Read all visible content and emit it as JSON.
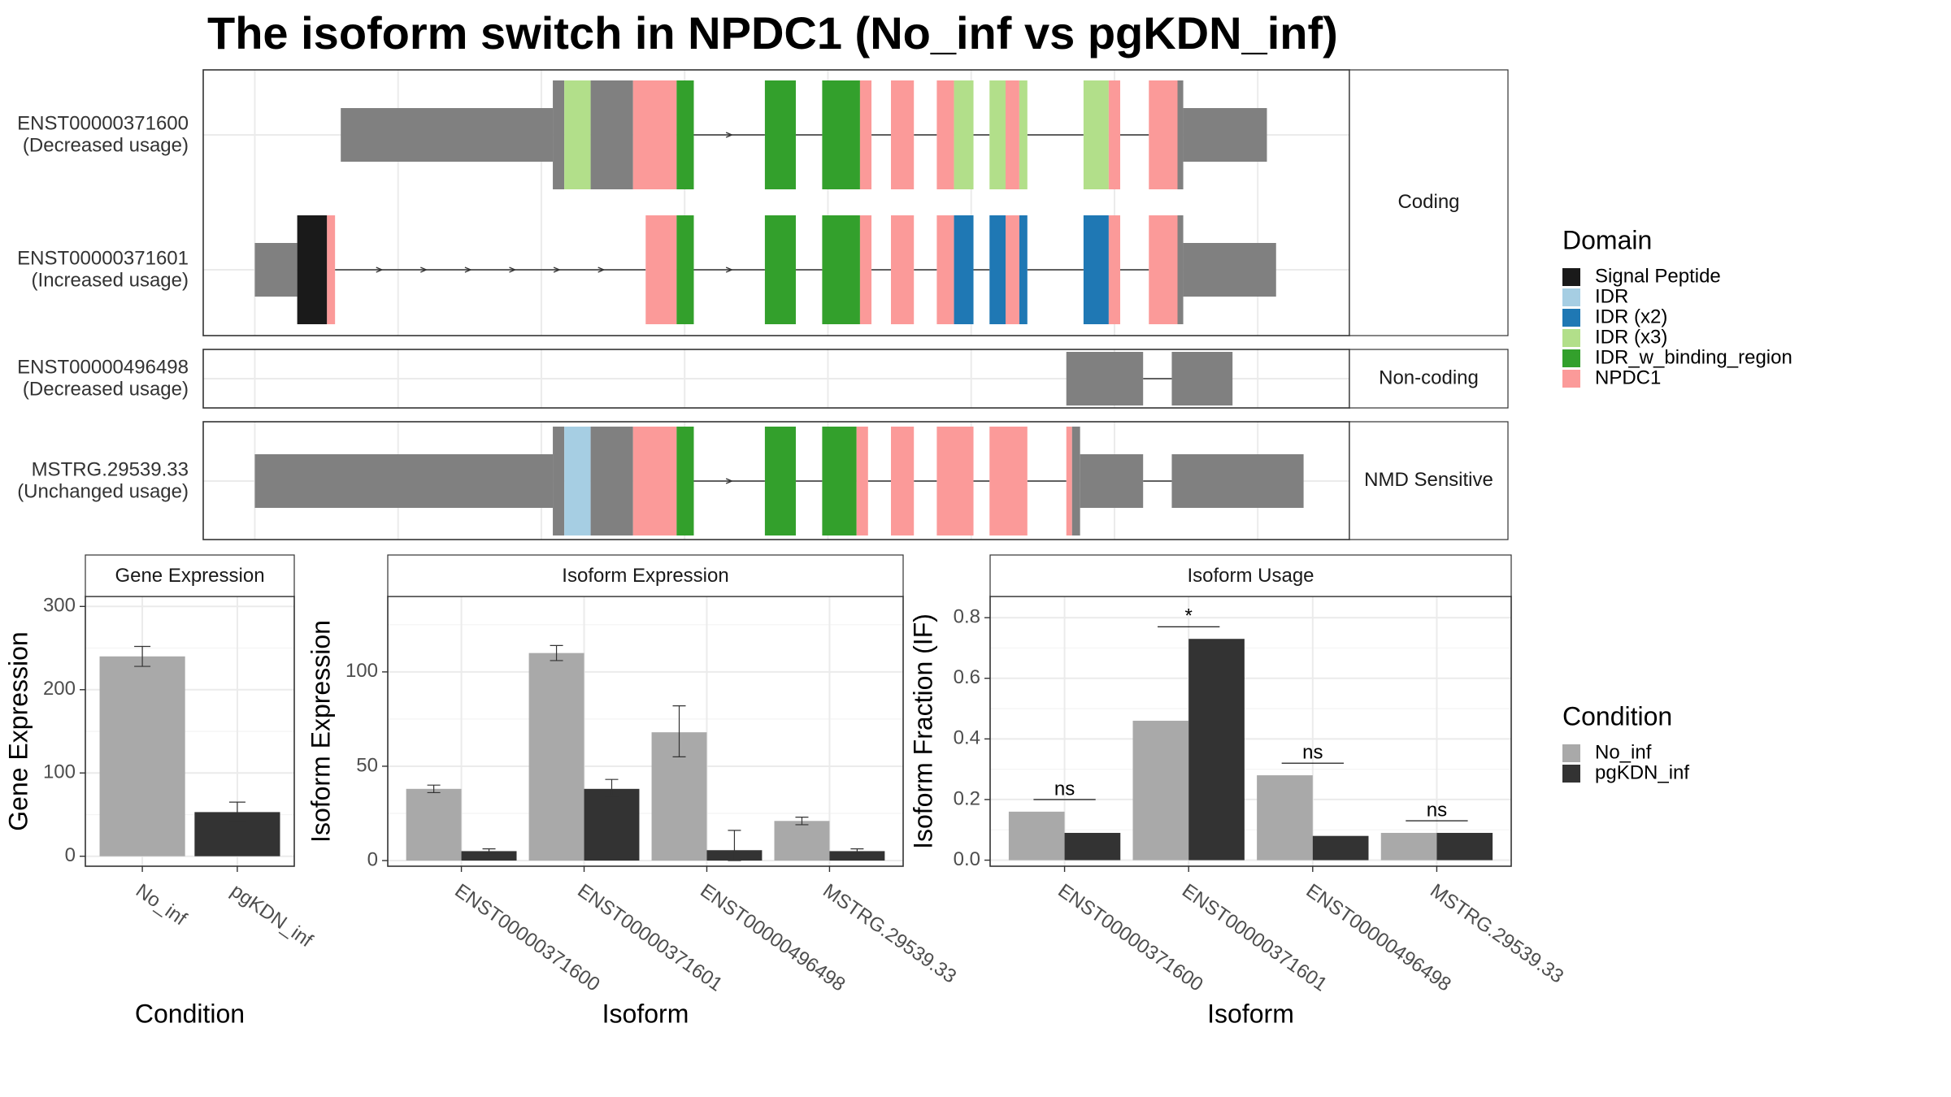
{
  "title": "The isoform switch in NPDC1 (No_inf vs pgKDN_inf)",
  "colors": {
    "intron_line": "#333333",
    "utr": "#808080",
    "signal_peptide": "#1a1a1a",
    "idr": "#a6cee3",
    "idr_x2": "#1f78b4",
    "idr_x3": "#b2df8a",
    "idr_w_binding_region": "#33a02c",
    "npdc1": "#fb9a99",
    "no_inf": "#a9a9a9",
    "pgkdn_inf": "#333333"
  },
  "structure": {
    "panels": [
      {
        "strip": "Coding",
        "isoforms": [
          {
            "id": "ENST00000371600",
            "usage": "(Decreased usage)",
            "segments": [
              {
                "from": 0.12,
                "to": 0.305,
                "type": "utr"
              },
              {
                "from": 0.305,
                "to": 0.315,
                "type": "cds"
              },
              {
                "from": 0.315,
                "to": 0.338,
                "type": "idr_x3"
              },
              {
                "from": 0.338,
                "to": 0.375,
                "type": "cds"
              },
              {
                "from": 0.375,
                "to": 0.413,
                "type": "npdc1"
              },
              {
                "from": 0.413,
                "to": 0.428,
                "type": "idr_w_binding_region"
              },
              {
                "from": 0.49,
                "to": 0.517,
                "type": "idr_w_binding_region"
              },
              {
                "from": 0.54,
                "to": 0.573,
                "type": "idr_w_binding_region"
              },
              {
                "from": 0.573,
                "to": 0.583,
                "type": "npdc1"
              },
              {
                "from": 0.6,
                "to": 0.62,
                "type": "npdc1"
              },
              {
                "from": 0.64,
                "to": 0.655,
                "type": "npdc1"
              },
              {
                "from": 0.655,
                "to": 0.672,
                "type": "idr_x3"
              },
              {
                "from": 0.686,
                "to": 0.7,
                "type": "idr_x3"
              },
              {
                "from": 0.7,
                "to": 0.712,
                "type": "npdc1"
              },
              {
                "from": 0.712,
                "to": 0.719,
                "type": "idr_x3"
              },
              {
                "from": 0.768,
                "to": 0.79,
                "type": "idr_x3"
              },
              {
                "from": 0.79,
                "to": 0.8,
                "type": "npdc1"
              },
              {
                "from": 0.825,
                "to": 0.85,
                "type": "npdc1"
              },
              {
                "from": 0.85,
                "to": 0.855,
                "type": "cds"
              },
              {
                "from": 0.855,
                "to": 0.928,
                "type": "utr"
              }
            ]
          },
          {
            "id": "ENST00000371601",
            "usage": "(Increased usage)",
            "segments": [
              {
                "from": 0.045,
                "to": 0.082,
                "type": "utr"
              },
              {
                "from": 0.082,
                "to": 0.108,
                "type": "signal_peptide"
              },
              {
                "from": 0.108,
                "to": 0.115,
                "type": "npdc1"
              },
              {
                "from": 0.386,
                "to": 0.413,
                "type": "npdc1"
              },
              {
                "from": 0.413,
                "to": 0.428,
                "type": "idr_w_binding_region"
              },
              {
                "from": 0.49,
                "to": 0.517,
                "type": "idr_w_binding_region"
              },
              {
                "from": 0.54,
                "to": 0.573,
                "type": "idr_w_binding_region"
              },
              {
                "from": 0.573,
                "to": 0.583,
                "type": "npdc1"
              },
              {
                "from": 0.6,
                "to": 0.62,
                "type": "npdc1"
              },
              {
                "from": 0.64,
                "to": 0.655,
                "type": "npdc1"
              },
              {
                "from": 0.655,
                "to": 0.672,
                "type": "idr_x2"
              },
              {
                "from": 0.686,
                "to": 0.7,
                "type": "idr_x2"
              },
              {
                "from": 0.7,
                "to": 0.712,
                "type": "npdc1"
              },
              {
                "from": 0.712,
                "to": 0.719,
                "type": "idr_x2"
              },
              {
                "from": 0.768,
                "to": 0.79,
                "type": "idr_x2"
              },
              {
                "from": 0.79,
                "to": 0.8,
                "type": "npdc1"
              },
              {
                "from": 0.825,
                "to": 0.85,
                "type": "npdc1"
              },
              {
                "from": 0.85,
                "to": 0.855,
                "type": "cds"
              },
              {
                "from": 0.855,
                "to": 0.936,
                "type": "utr"
              }
            ]
          }
        ]
      },
      {
        "strip": "Non-coding",
        "isoforms": [
          {
            "id": "ENST00000496498",
            "usage": "(Decreased usage)",
            "segments": [
              {
                "from": 0.753,
                "to": 0.82,
                "type": "utr"
              },
              {
                "from": 0.845,
                "to": 0.898,
                "type": "utr"
              }
            ]
          }
        ]
      },
      {
        "strip": "NMD Sensitive",
        "isoforms": [
          {
            "id": "MSTRG.29539.33",
            "usage": "(Unchanged usage)",
            "segments": [
              {
                "from": 0.045,
                "to": 0.305,
                "type": "utr"
              },
              {
                "from": 0.305,
                "to": 0.315,
                "type": "cds"
              },
              {
                "from": 0.315,
                "to": 0.338,
                "type": "idr"
              },
              {
                "from": 0.338,
                "to": 0.375,
                "type": "cds"
              },
              {
                "from": 0.375,
                "to": 0.413,
                "type": "npdc1"
              },
              {
                "from": 0.413,
                "to": 0.428,
                "type": "idr_w_binding_region"
              },
              {
                "from": 0.49,
                "to": 0.517,
                "type": "idr_w_binding_region"
              },
              {
                "from": 0.54,
                "to": 0.57,
                "type": "idr_w_binding_region"
              },
              {
                "from": 0.57,
                "to": 0.58,
                "type": "npdc1"
              },
              {
                "from": 0.6,
                "to": 0.62,
                "type": "npdc1"
              },
              {
                "from": 0.64,
                "to": 0.672,
                "type": "npdc1"
              },
              {
                "from": 0.686,
                "to": 0.719,
                "type": "npdc1"
              },
              {
                "from": 0.753,
                "to": 0.758,
                "type": "npdc1"
              },
              {
                "from": 0.758,
                "to": 0.765,
                "type": "cds"
              },
              {
                "from": 0.765,
                "to": 0.82,
                "type": "utr"
              },
              {
                "from": 0.845,
                "to": 0.96,
                "type": "utr"
              }
            ]
          }
        ]
      }
    ]
  },
  "domain_legend": {
    "title": "Domain",
    "items": [
      {
        "label": "Signal Peptide",
        "color_key": "signal_peptide"
      },
      {
        "label": "IDR",
        "color_key": "idr"
      },
      {
        "label": "IDR (x2)",
        "color_key": "idr_x2"
      },
      {
        "label": "IDR (x3)",
        "color_key": "idr_x3"
      },
      {
        "label": "IDR_w_binding_region",
        "color_key": "idr_w_binding_region"
      },
      {
        "label": "NPDC1",
        "color_key": "npdc1"
      }
    ]
  },
  "condition_legend": {
    "title": "Condition",
    "items": [
      {
        "label": "No_inf",
        "color_key": "no_inf"
      },
      {
        "label": "pgKDN_inf",
        "color_key": "pgkdn_inf"
      }
    ]
  },
  "chart_data": [
    {
      "type": "bar",
      "title": "Gene Expression",
      "xlabel": "Condition",
      "ylabel": "Gene Expression",
      "ylim": [
        -12,
        312
      ],
      "yticks": [
        0,
        100,
        200,
        300
      ],
      "categories": [
        "No_inf",
        "pgKDN_inf"
      ],
      "values": [
        240,
        53
      ],
      "error": [
        [
          228,
          252
        ],
        [
          42,
          65
        ]
      ]
    },
    {
      "type": "bar",
      "title": "Isoform Expression",
      "xlabel": "Isoform",
      "ylabel": "Isoform Expression",
      "ylim": [
        -3,
        140
      ],
      "yticks": [
        0,
        50,
        100
      ],
      "categories": [
        "ENST00000371600",
        "ENST00000371601",
        "ENST00000496498",
        "MSTRG.29539.33"
      ],
      "series": [
        {
          "name": "No_inf",
          "values": [
            38,
            110,
            68,
            21
          ],
          "error": [
            [
              36,
              40
            ],
            [
              106,
              114
            ],
            [
              55,
              82
            ],
            [
              19,
              23
            ]
          ]
        },
        {
          "name": "pgKDN_inf",
          "values": [
            5,
            38,
            5.5,
            5
          ],
          "error": [
            [
              3.8,
              6.2
            ],
            [
              34,
              43
            ],
            [
              0,
              16
            ],
            [
              3.8,
              6.2
            ]
          ]
        }
      ]
    },
    {
      "type": "bar",
      "title": "Isoform Usage",
      "xlabel": "Isoform",
      "ylabel": "Isoform Fraction (IF)",
      "ylim": [
        -0.02,
        0.87
      ],
      "yticks": [
        0.0,
        0.2,
        0.4,
        0.6,
        0.8
      ],
      "ytick_labels": [
        "0.0",
        "0.2",
        "0.4",
        "0.6",
        "0.8"
      ],
      "categories": [
        "ENST00000371600",
        "ENST00000371601",
        "ENST00000496498",
        "MSTRG.29539.33"
      ],
      "series": [
        {
          "name": "No_inf",
          "values": [
            0.16,
            0.46,
            0.28,
            0.09
          ]
        },
        {
          "name": "pgKDN_inf",
          "values": [
            0.09,
            0.73,
            0.08,
            0.09
          ]
        }
      ],
      "significance": [
        {
          "label": "ns",
          "value": 0.2
        },
        {
          "label": "*",
          "value": 0.77
        },
        {
          "label": "ns",
          "value": 0.32
        },
        {
          "label": "ns",
          "value": 0.13
        }
      ]
    }
  ]
}
